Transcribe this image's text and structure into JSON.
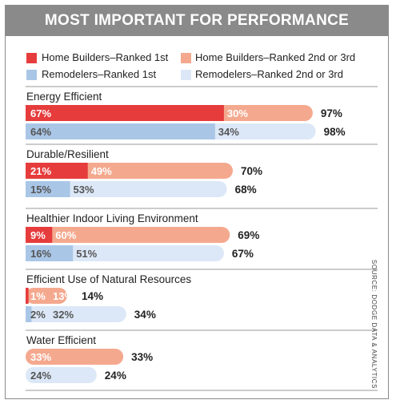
{
  "title": "MOST IMPORTANT FOR PERFORMANCE",
  "source": "SOURCE: DODGE DATA & ANALYTICS",
  "colors": {
    "hb_first": "#e63c3c",
    "hb_other": "#f4a98f",
    "rm_first": "#a9c6e6",
    "rm_other": "#dce8f7",
    "header_bg": "#8a8a8a"
  },
  "legend": [
    {
      "label": "Home Builders–Ranked 1st",
      "color": "#e63c3c"
    },
    {
      "label": "Home Builders–Ranked 2nd or 3rd",
      "color": "#f4a98f"
    },
    {
      "label": "Remodelers–Ranked 1st",
      "color": "#a9c6e6"
    },
    {
      "label": "Remodelers–Ranked 2nd or 3rd",
      "color": "#dce8f7"
    }
  ],
  "chart_data": {
    "type": "bar",
    "stacked": true,
    "orientation": "horizontal",
    "title": "MOST IMPORTANT FOR PERFORMANCE",
    "categories": [
      "Energy Efficient",
      "Durable/Resilient",
      "Healthier Indoor Living Environment",
      "Efficient Use of Natural Resources",
      "Water Efficient"
    ],
    "groups": [
      {
        "name": "Home Builders",
        "first": [
          67,
          21,
          9,
          1,
          0
        ],
        "other": [
          30,
          49,
          60,
          13,
          33
        ],
        "total": [
          97,
          70,
          69,
          14,
          33
        ],
        "first_labels": [
          "67%",
          "21%",
          "9%",
          "1%",
          ""
        ],
        "other_labels": [
          "30%",
          "49%",
          "60%",
          "13%",
          "33%"
        ],
        "total_labels": [
          "97%",
          "70%",
          "69%",
          "14%",
          "33%"
        ]
      },
      {
        "name": "Remodelers",
        "first": [
          64,
          15,
          16,
          2,
          0
        ],
        "other": [
          34,
          53,
          51,
          32,
          24
        ],
        "total": [
          98,
          68,
          67,
          34,
          24
        ],
        "first_labels": [
          "64%",
          "15%",
          "16%",
          "2%",
          ""
        ],
        "other_labels": [
          "34%",
          "53%",
          "51%",
          "32%",
          "24%"
        ],
        "total_labels": [
          "98%",
          "68%",
          "67%",
          "34%",
          "24%"
        ]
      }
    ],
    "series": [
      {
        "name": "Home Builders–Ranked 1st"
      },
      {
        "name": "Home Builders–Ranked 2nd or 3rd"
      },
      {
        "name": "Remodelers–Ranked 1st"
      },
      {
        "name": "Remodelers–Ranked 2nd or 3rd"
      }
    ],
    "xlim": [
      0,
      100
    ],
    "grid": false,
    "legend_position": "top"
  }
}
